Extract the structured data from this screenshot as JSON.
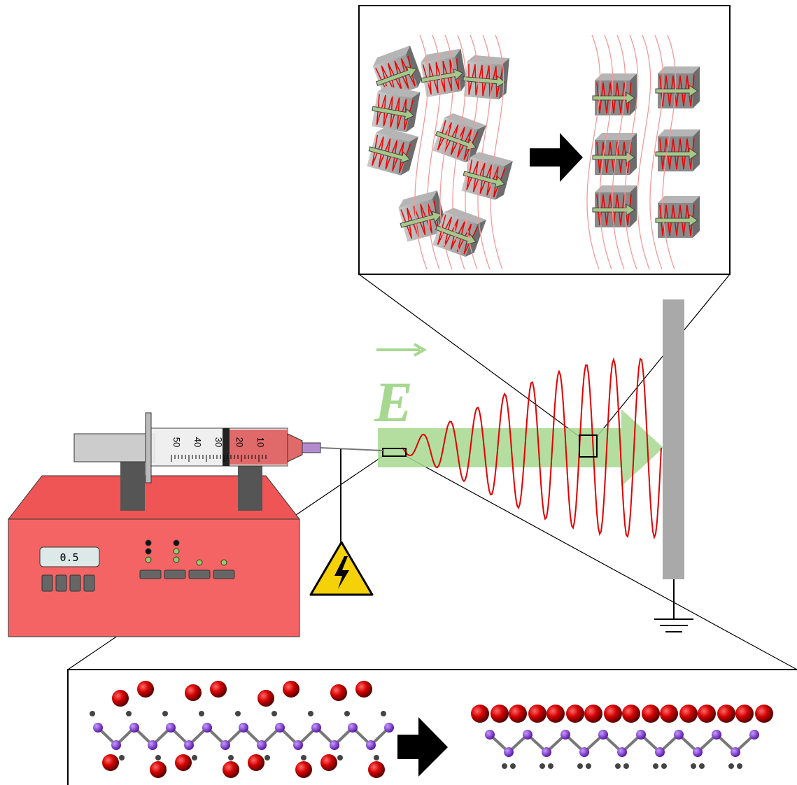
{
  "display": {
    "reading": "0.5"
  },
  "syringe": {
    "scale_labels": [
      "50",
      "40",
      "30",
      "20",
      "10"
    ]
  },
  "field": {
    "label": "E"
  }
}
